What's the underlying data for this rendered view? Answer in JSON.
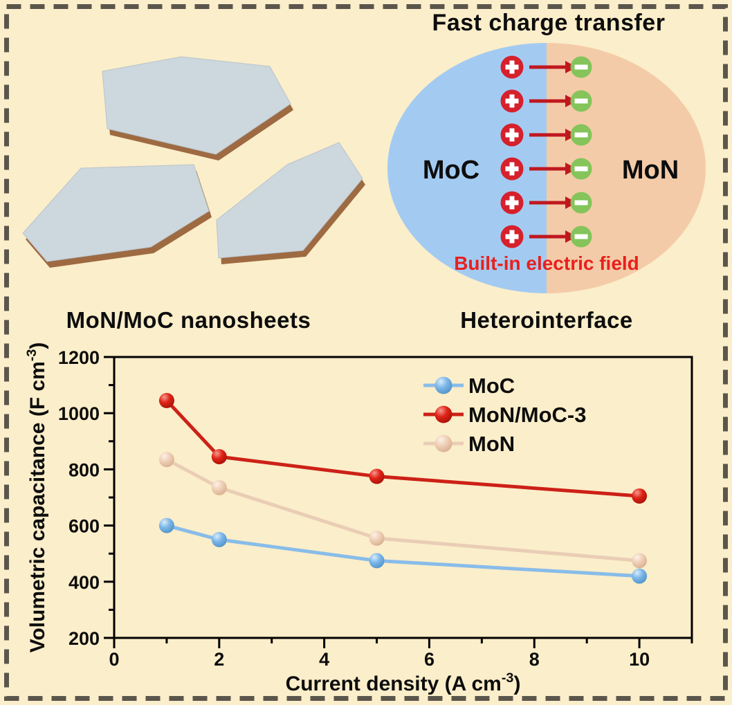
{
  "figure": {
    "background_color": "#fbeeca",
    "border_color": "#5b564c"
  },
  "nanosheets_panel": {
    "caption": "MoN/MoC nanosheets",
    "sheet_top_color": "#cdd7de",
    "sheet_edge_color": "#9e6a42"
  },
  "hetero_panel": {
    "title": "Fast charge transfer",
    "caption": "Heterointerface",
    "left_region_label": "MoC",
    "right_region_label": "MoN",
    "field_label": "Built-in electric field",
    "left_region_color": "#a3cbf2",
    "right_region_color": "#f4cba8",
    "plus_icon_color": "#d6202c",
    "minus_icon_color": "#84c45a",
    "arrow_color": "#c0181f",
    "field_label_color": "#e8201d",
    "charge_pair_count": 6
  },
  "chart_data": {
    "type": "line",
    "x": [
      1,
      2,
      5,
      10
    ],
    "series": [
      {
        "name": "MoC",
        "values": [
          600,
          550,
          475,
          420
        ],
        "line_color": "#88bce9",
        "marker_colors": [
          "#d9ecfb",
          "#7db7e8",
          "#4d90c6"
        ]
      },
      {
        "name": "MoN/MoC-3",
        "values": [
          1045,
          845,
          775,
          705
        ],
        "line_color": "#cc2117",
        "marker_colors": [
          "#f59a90",
          "#e02317",
          "#a31108"
        ]
      },
      {
        "name": "MoN",
        "values": [
          835,
          735,
          555,
          475
        ],
        "line_color": "#e9cdb5",
        "marker_colors": [
          "#fdf1e7",
          "#efd0b8",
          "#d8ad8c"
        ]
      }
    ],
    "xlabel": "Current density (A cm⁻³)",
    "ylabel": "Volumetric capacitance (F cm⁻³)",
    "xlim": [
      0,
      11
    ],
    "ylim": [
      200,
      1200
    ],
    "x_major_ticks": [
      0,
      2,
      4,
      6,
      8,
      10
    ],
    "x_minor_step": 1,
    "y_major_ticks": [
      200,
      400,
      600,
      800,
      1000,
      1200
    ],
    "y_minor_step": 100,
    "legend_position": "top-right-inside",
    "grid": false,
    "axis_color": "#000000",
    "draw_order": [
      2,
      0,
      1
    ]
  }
}
